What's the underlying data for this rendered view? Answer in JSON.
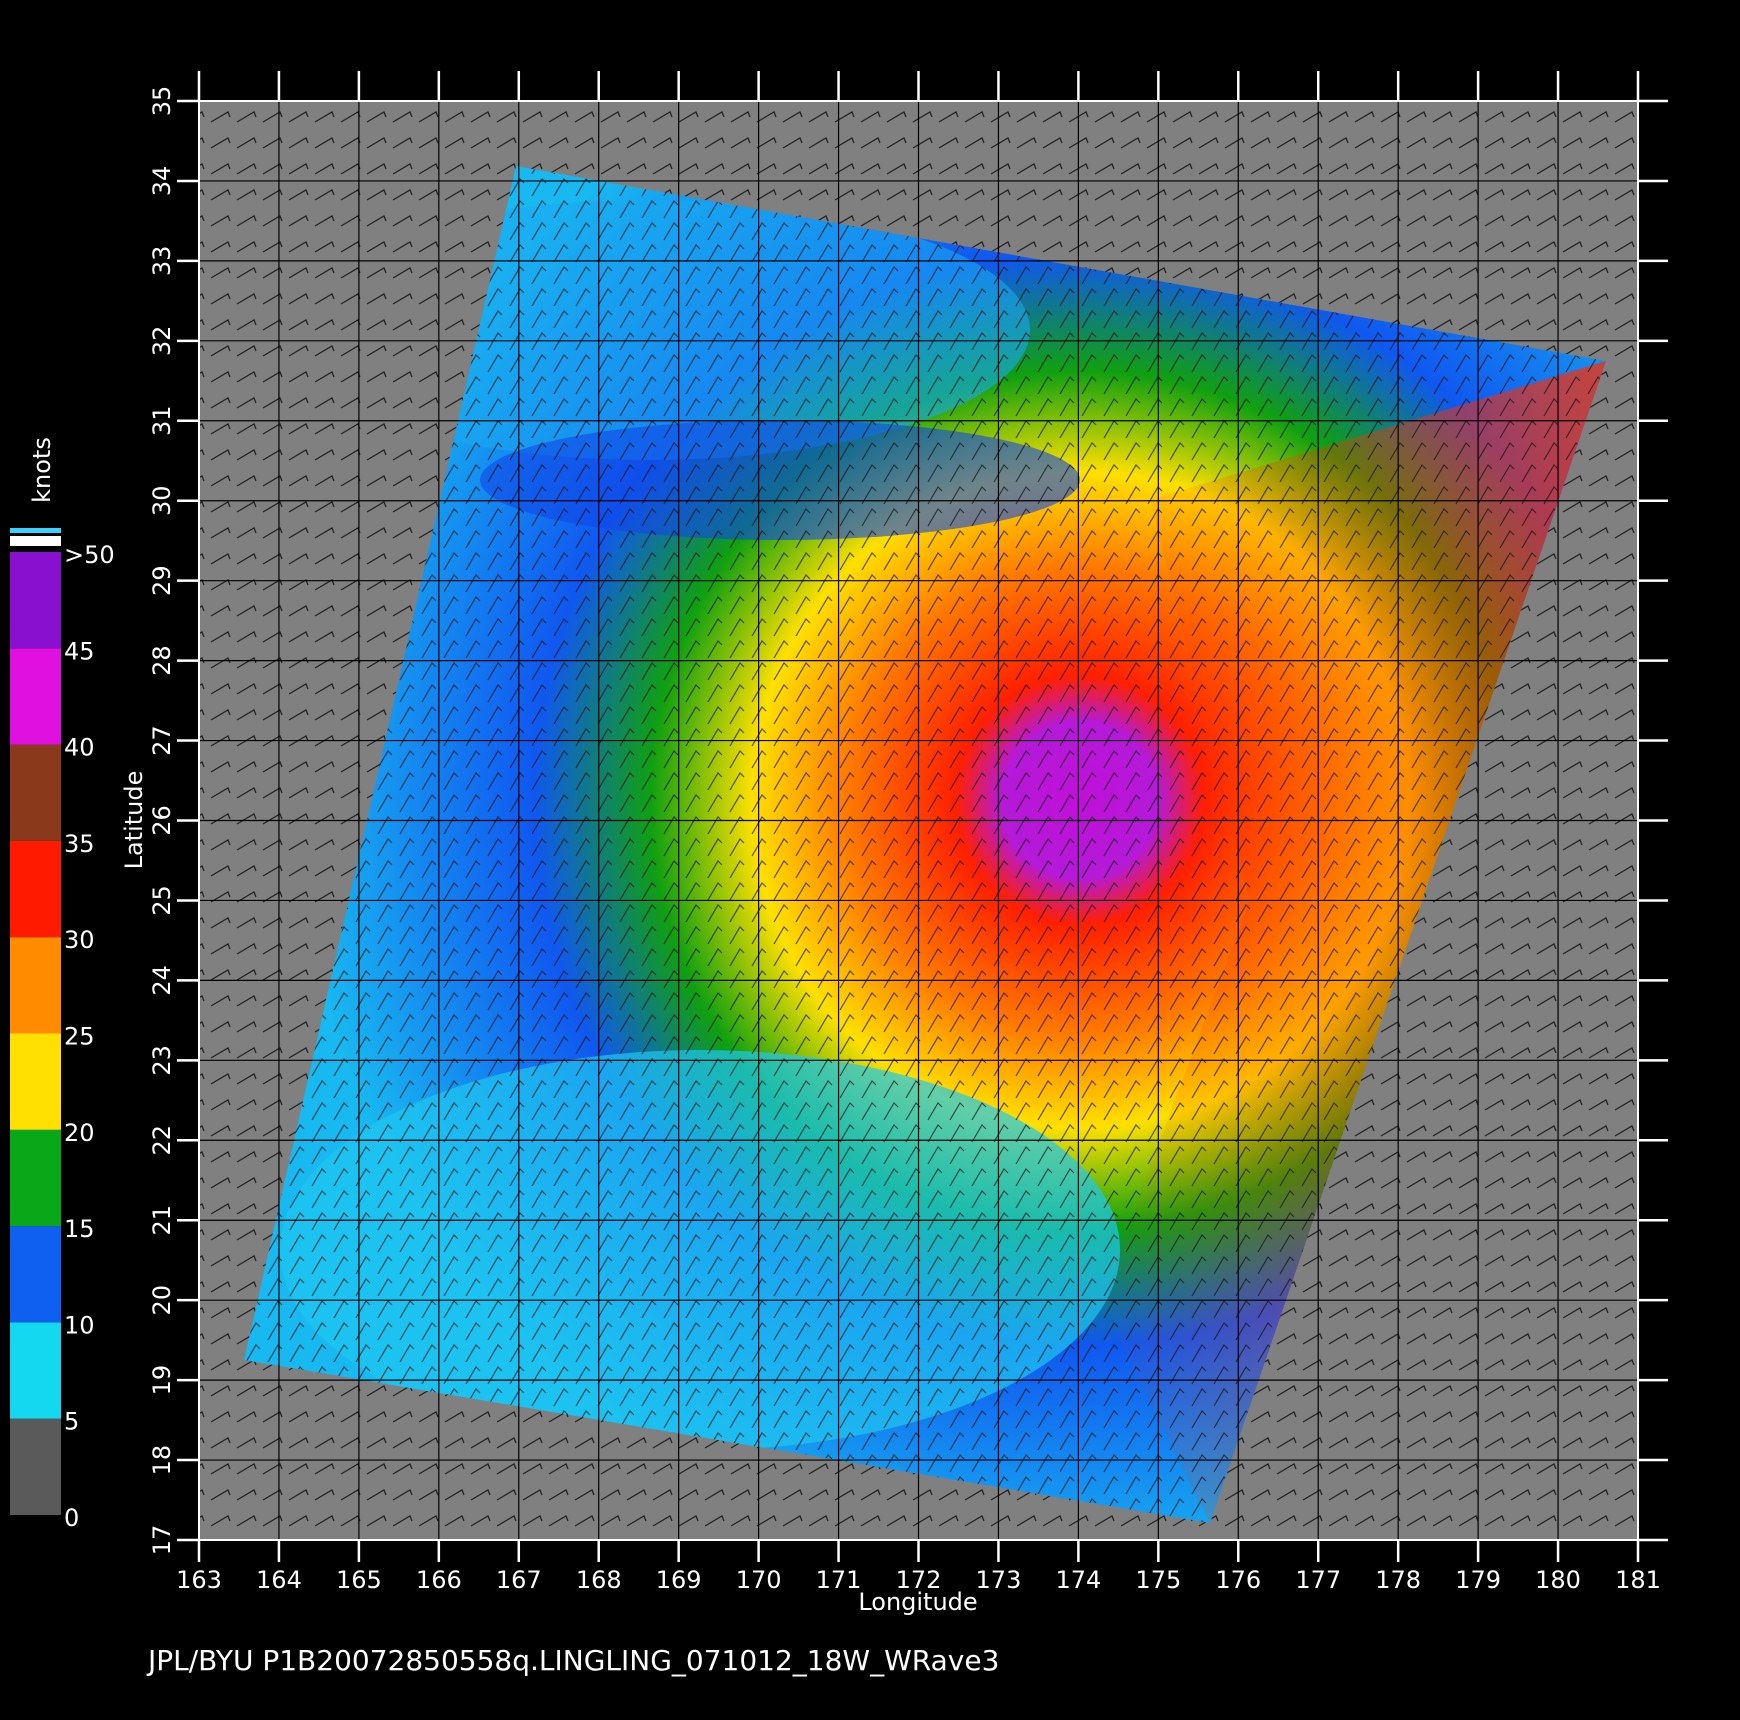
{
  "map": {
    "xlabel": "Longitude",
    "ylabel": "Latitude",
    "xlim": [
      163,
      181
    ],
    "xticks": [
      163,
      164,
      165,
      166,
      167,
      168,
      169,
      170,
      171,
      172,
      173,
      174,
      175,
      176,
      177,
      178,
      179,
      180,
      181
    ],
    "ylim": [
      17,
      35
    ],
    "yticks": [
      17,
      18,
      19,
      20,
      21,
      22,
      23,
      24,
      25,
      26,
      27,
      28,
      29,
      30,
      31,
      32,
      33,
      34,
      35
    ]
  },
  "colorbar": {
    "title": "knots",
    "ticks": [
      0,
      5,
      10,
      15,
      20,
      25,
      30,
      35,
      40,
      45,
      {
        "value": 50,
        "label": ">50"
      }
    ],
    "colors": [
      "#5a5a5a",
      "#14d8f0",
      "#1060f0",
      "#08a818",
      "#ffe000",
      "#ff8c00",
      "#ff1a00",
      "#8a3a1a",
      "#e010e0",
      "#8a10d0"
    ]
  },
  "footer": "JPL/BYU  P1B20072850558q.LINGLING_071012_18W_WRave3"
}
